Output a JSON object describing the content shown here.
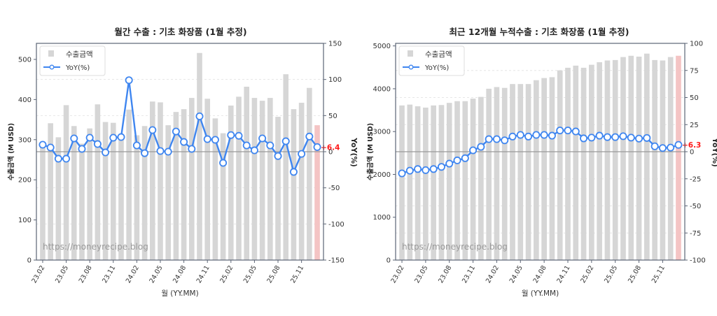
{
  "chart_data": [
    {
      "type": "bar+line",
      "title": "월간 수출 : 기초 화장품 (1월 추정)",
      "xlabel": "월 (YY.MM)",
      "ylabel": "수출금액 (M USD)",
      "y2label": "YoY(%)",
      "ylim": [
        0,
        540
      ],
      "y2lim": [
        -150,
        150
      ],
      "yticks": [
        0,
        100,
        200,
        300,
        400,
        500
      ],
      "y2ticks": [
        -150,
        -100,
        -50,
        0,
        50,
        100,
        150
      ],
      "grid": true,
      "legend_position": "upper left",
      "legend": [
        "수출금액",
        "YoY(%)"
      ],
      "watermark": "https://moneyrecipe.blog",
      "xtick_labels": [
        "23.02",
        "23.05",
        "23.08",
        "23.11",
        "24.02",
        "24.05",
        "24.08",
        "24.11",
        "25.02",
        "25.05",
        "25.08",
        "25.11"
      ],
      "categories": [
        "23.02",
        "23.03",
        "23.04",
        "23.05",
        "23.06",
        "23.07",
        "23.08",
        "23.09",
        "23.10",
        "23.11",
        "23.12",
        "24.01",
        "24.02",
        "24.03",
        "24.04",
        "24.05",
        "24.06",
        "24.07",
        "24.08",
        "24.09",
        "24.10",
        "24.11",
        "24.12",
        "25.01",
        "25.02",
        "25.03",
        "25.04",
        "25.05",
        "25.06",
        "25.07",
        "25.08",
        "25.09",
        "25.10",
        "25.11",
        "25.12",
        "26.01"
      ],
      "series": [
        {
          "name": "수출금액",
          "type": "bar",
          "axis": "left",
          "values": [
            283,
            341,
            306,
            386,
            334,
            290,
            328,
            388,
            344,
            342,
            300,
            375,
            311,
            334,
            395,
            393,
            336,
            369,
            376,
            404,
            516,
            402,
            353,
            316,
            385,
            407,
            432,
            404,
            397,
            404,
            357,
            463,
            376,
            392,
            429,
            336
          ]
        },
        {
          "name": "YoY(%)",
          "type": "line",
          "axis": "right",
          "values": [
            9.7,
            5.8,
            -9.7,
            -9.7,
            18.4,
            3.9,
            19.4,
            10.6,
            -1,
            19.4,
            20.3,
            99,
            8.7,
            -2,
            30,
            1,
            0,
            28,
            13.5,
            3.9,
            49,
            17.4,
            16.5,
            -15.5,
            23,
            22,
            8.7,
            1.9,
            18.4,
            8.7,
            -6,
            14.5,
            -28,
            -3,
            21,
            6.4
          ]
        }
      ],
      "highlight_last_bar": true,
      "annotation": "+6.4"
    },
    {
      "type": "bar+line",
      "title": "최근 12개월 누적수출 : 기초 화장품 (1월 추정)",
      "xlabel": "월 (YY.MM)",
      "ylabel": "수출금액 (M USD)",
      "y2label": "YoY(%)",
      "ylim": [
        0,
        5060
      ],
      "y2lim": [
        -100,
        100
      ],
      "yticks": [
        0,
        1000,
        2000,
        3000,
        4000,
        5000
      ],
      "y2ticks": [
        -100,
        -75,
        -50,
        -25,
        0,
        25,
        50,
        75,
        100
      ],
      "grid": true,
      "legend_position": "upper left",
      "legend": [
        "수출금액",
        "YoY(%)"
      ],
      "watermark": "https://moneyrecipe.blog",
      "xtick_labels": [
        "23.02",
        "23.05",
        "23.08",
        "23.11",
        "24.02",
        "24.05",
        "24.08",
        "24.11",
        "25.02",
        "25.05",
        "25.08",
        "25.11"
      ],
      "categories": [
        "23.02",
        "23.03",
        "23.04",
        "23.05",
        "23.06",
        "23.07",
        "23.08",
        "23.09",
        "23.10",
        "23.11",
        "23.12",
        "24.01",
        "24.02",
        "24.03",
        "24.04",
        "24.05",
        "24.06",
        "24.07",
        "24.08",
        "24.09",
        "24.10",
        "24.11",
        "24.12",
        "25.01",
        "25.02",
        "25.03",
        "25.04",
        "25.05",
        "25.06",
        "25.07",
        "25.08",
        "25.09",
        "25.10",
        "25.11",
        "25.12",
        "26.01"
      ],
      "series": [
        {
          "name": "수출금액",
          "type": "bar",
          "axis": "left",
          "values": [
            3610,
            3630,
            3590,
            3560,
            3610,
            3620,
            3670,
            3710,
            3710,
            3770,
            3810,
            4000,
            4040,
            4020,
            4110,
            4110,
            4110,
            4200,
            4250,
            4270,
            4430,
            4490,
            4540,
            4490,
            4560,
            4620,
            4660,
            4670,
            4740,
            4770,
            4750,
            4820,
            4670,
            4660,
            4740,
            4770
          ]
        },
        {
          "name": "YoY(%)",
          "type": "line",
          "axis": "right",
          "values": [
            -20,
            -17.5,
            -16,
            -17,
            -16,
            -14,
            -11,
            -8,
            -6,
            1.3,
            4.5,
            11.6,
            11.6,
            10.5,
            14,
            15.5,
            14,
            15.5,
            15.5,
            14.8,
            19.6,
            19.6,
            18.7,
            12.3,
            13,
            14.8,
            13.5,
            13.5,
            14.3,
            13,
            12.1,
            12.7,
            5,
            3.4,
            3.8,
            6.3
          ]
        }
      ],
      "highlight_last_bar": true,
      "annotation": "+6.3"
    }
  ],
  "colors": {
    "bar": "#d6d6d6",
    "bar_highlight": "#f4c4c4",
    "line": "#3f86f0",
    "marker_fill": "#ffffff",
    "zero_line": "#999999",
    "annotation": "#ff1a1a",
    "axis": "#5b6475",
    "grid": "#e6e6e6",
    "text": "#333333",
    "watermark": "#9a9a9a"
  }
}
